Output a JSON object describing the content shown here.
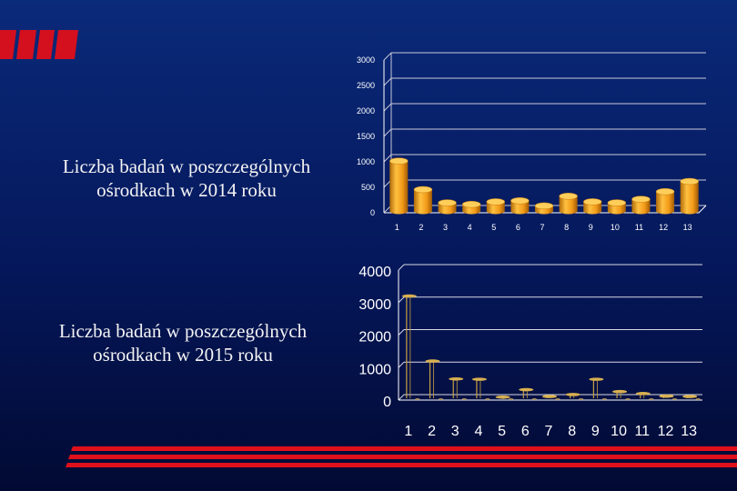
{
  "slide": {
    "caption_2014_line1": "Liczba badań w poszczególnych",
    "caption_2014_line2": "ośrodkach w 2014 roku",
    "caption_2015_line1": "Liczba badań w poszczególnych",
    "caption_2015_line2": "ośrodkach w 2015 roku"
  },
  "colors": {
    "background": "#0a2a7a",
    "bar_fill": "#f0a020",
    "stem_2015": "#c8a040",
    "logo_red": "#d4101e",
    "stripe_red": "#e0101a"
  },
  "chart_data": [
    {
      "type": "bar",
      "title": "",
      "categories": [
        "1",
        "2",
        "3",
        "4",
        "5",
        "6",
        "7",
        "8",
        "9",
        "10",
        "11",
        "12",
        "13"
      ],
      "values": [
        980,
        420,
        160,
        130,
        180,
        200,
        100,
        290,
        180,
        160,
        230,
        380,
        580
      ],
      "yticks": [
        "0",
        "500",
        "1000",
        "1500",
        "2000",
        "2500",
        "3000"
      ],
      "ylim": [
        0,
        3000
      ],
      "grid": true,
      "xlabel": "",
      "ylabel": ""
    },
    {
      "type": "bar",
      "title": "",
      "categories": [
        "1",
        "2",
        "3",
        "4",
        "5",
        "6",
        "7",
        "8",
        "9",
        "10",
        "11",
        "12",
        "13"
      ],
      "values": [
        3200,
        1200,
        650,
        640,
        90,
        320,
        110,
        170,
        640,
        260,
        200,
        120,
        110
      ],
      "yticks": [
        "0",
        "1000",
        "2000",
        "3000",
        "4000"
      ],
      "ylim": [
        0,
        4000
      ],
      "grid": true,
      "xlabel": "",
      "ylabel": ""
    }
  ]
}
